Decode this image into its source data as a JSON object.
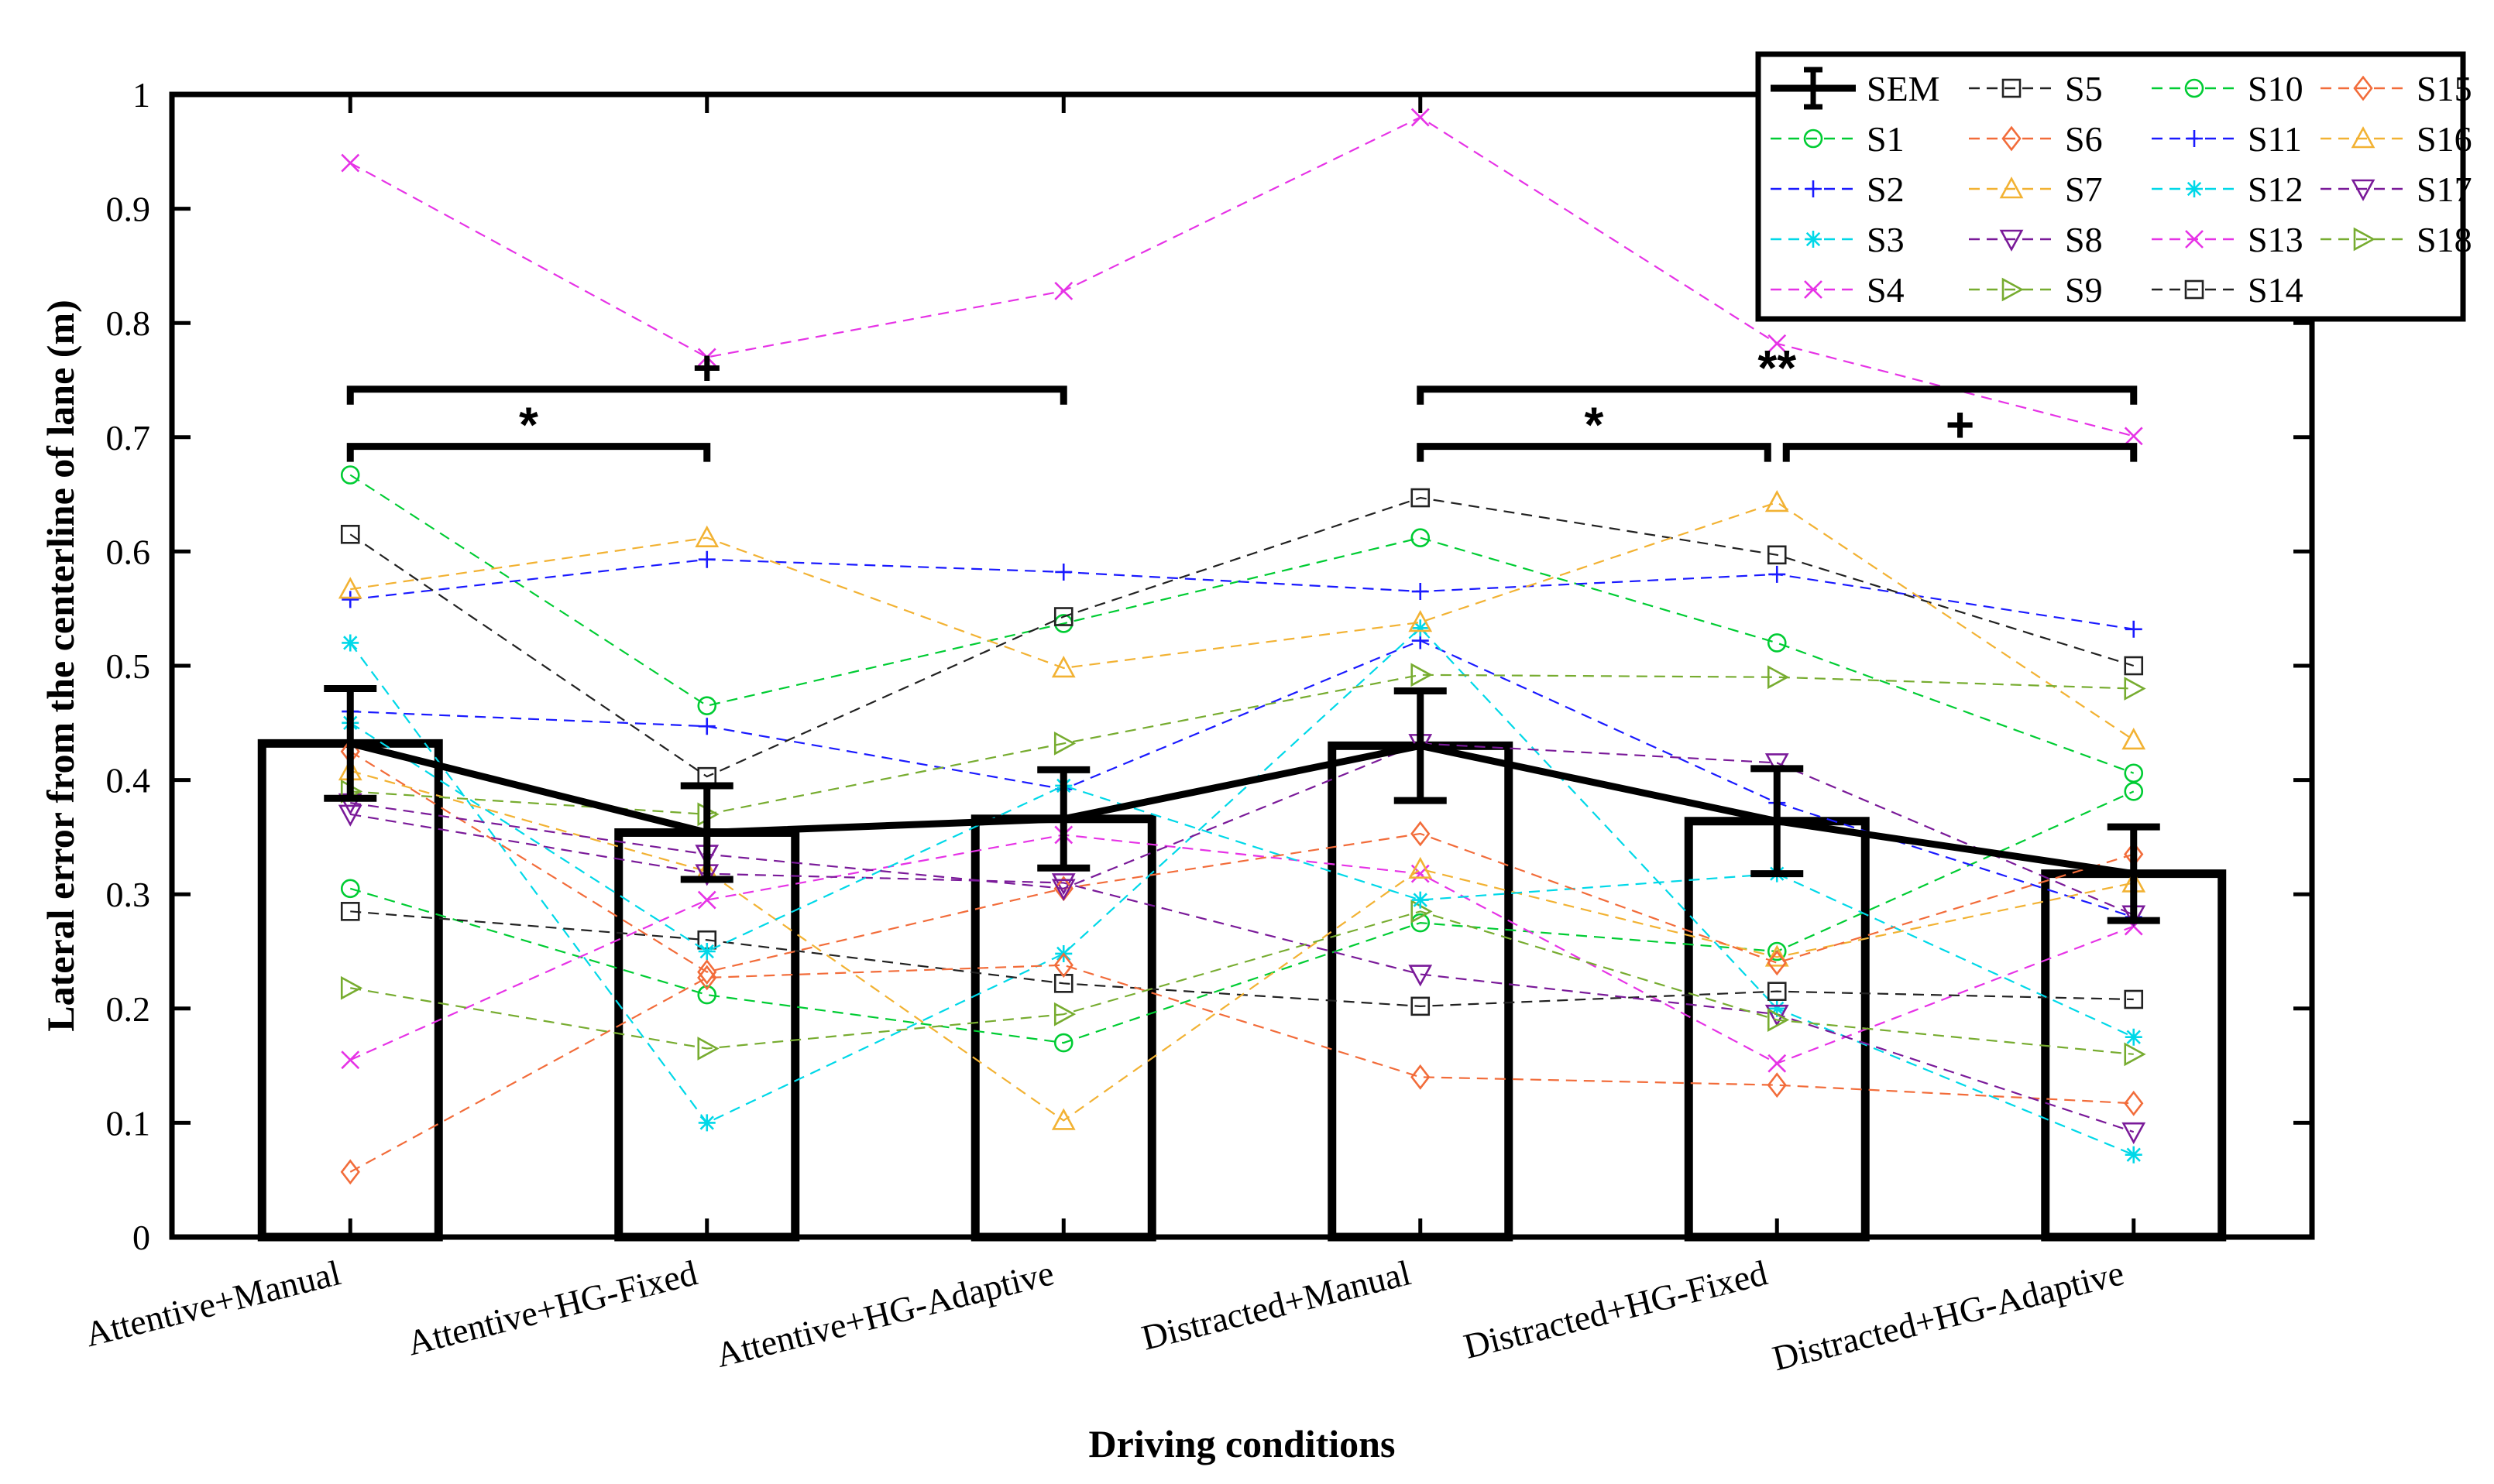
{
  "chart_data": {
    "type": "bar",
    "title": "",
    "xlabel": "Driving conditions",
    "ylabel": "Lateral error from the centerline of lane (m)",
    "ylim": [
      0,
      1
    ],
    "yticks": [
      0,
      0.1,
      0.2,
      0.3,
      0.4,
      0.5,
      0.6,
      0.7,
      0.8,
      0.9,
      1
    ],
    "ytick_labels": [
      "0",
      "0.1",
      "0.2",
      "0.3",
      "0.4",
      "0.5",
      "0.6",
      "0.7",
      "0.8",
      "0.9",
      "1"
    ],
    "categories": [
      "Attentive+Manual",
      "Attentive+HG-Fixed",
      "Attentive+HG-Adaptive",
      "Distracted+Manual",
      "Distracted+HG-Fixed",
      "Distracted+HG-Adaptive"
    ],
    "mean_values": [
      0.432,
      0.354,
      0.366,
      0.43,
      0.364,
      0.318
    ],
    "sem": [
      0.048,
      0.041,
      0.043,
      0.048,
      0.046,
      0.041
    ],
    "sem_label": "SEM",
    "legend_position": "top-right",
    "series": [
      {
        "name": "S1",
        "color": "#00cc33",
        "marker": "circle",
        "values": [
          0.305,
          0.212,
          0.17,
          0.275,
          0.25,
          0.39
        ]
      },
      {
        "name": "S2",
        "color": "#1a1aff",
        "marker": "plus",
        "values": [
          0.46,
          0.447,
          0.392,
          0.522,
          0.38,
          0.28
        ]
      },
      {
        "name": "S3",
        "color": "#00d8e8",
        "marker": "star",
        "values": [
          0.52,
          0.1,
          0.248,
          0.533,
          0.2,
          0.072
        ]
      },
      {
        "name": "S4",
        "color": "#e633e6",
        "marker": "x",
        "values": [
          0.155,
          0.295,
          0.352,
          0.318,
          0.152,
          0.272
        ]
      },
      {
        "name": "S5",
        "color": "#222222",
        "marker": "square",
        "values": [
          0.285,
          0.26,
          0.222,
          0.202,
          0.215,
          0.208
        ]
      },
      {
        "name": "S6",
        "color": "#f26c3a",
        "marker": "diamond",
        "values": [
          0.057,
          0.227,
          0.238,
          0.14,
          0.133,
          0.117
        ]
      },
      {
        "name": "S7",
        "color": "#f2b233",
        "marker": "triangle-up",
        "values": [
          0.408,
          0.32,
          0.102,
          0.322,
          0.245,
          0.31
        ]
      },
      {
        "name": "S8",
        "color": "#7a1a99",
        "marker": "triangle-down",
        "values": [
          0.37,
          0.318,
          0.31,
          0.23,
          0.195,
          0.092
        ]
      },
      {
        "name": "S9",
        "color": "#77ac30",
        "marker": "triangle-right",
        "values": [
          0.218,
          0.165,
          0.195,
          0.285,
          0.19,
          0.16
        ]
      },
      {
        "name": "S10",
        "color": "#00cc33",
        "marker": "circle",
        "values": [
          0.667,
          0.465,
          0.537,
          0.612,
          0.52,
          0.406
        ]
      },
      {
        "name": "S11",
        "color": "#1a1aff",
        "marker": "plus",
        "values": [
          0.558,
          0.593,
          0.582,
          0.565,
          0.58,
          0.532
        ]
      },
      {
        "name": "S12",
        "color": "#00d8e8",
        "marker": "star",
        "values": [
          0.45,
          0.25,
          0.395,
          0.295,
          0.318,
          0.175
        ]
      },
      {
        "name": "S13",
        "color": "#e633e6",
        "marker": "x",
        "values": [
          0.94,
          0.77,
          0.828,
          0.98,
          0.782,
          0.701
        ]
      },
      {
        "name": "S14",
        "color": "#222222",
        "marker": "square",
        "values": [
          0.615,
          0.403,
          0.543,
          0.647,
          0.597,
          0.5
        ]
      },
      {
        "name": "S15",
        "color": "#f26c3a",
        "marker": "diamond",
        "values": [
          0.425,
          0.232,
          0.305,
          0.353,
          0.24,
          0.335
        ]
      },
      {
        "name": "S16",
        "color": "#f2b233",
        "marker": "triangle-up",
        "values": [
          0.567,
          0.612,
          0.498,
          0.538,
          0.643,
          0.435
        ]
      },
      {
        "name": "S17",
        "color": "#7a1a99",
        "marker": "triangle-down",
        "values": [
          0.38,
          0.335,
          0.305,
          0.432,
          0.415,
          0.282
        ]
      },
      {
        "name": "S18",
        "color": "#77ac30",
        "marker": "triangle-right",
        "values": [
          0.39,
          0.37,
          0.432,
          0.492,
          0.49,
          0.48
        ]
      }
    ],
    "significance": [
      {
        "from": 0,
        "to": 2,
        "label": "+"
      },
      {
        "from": 0,
        "to": 1,
        "label": "*"
      },
      {
        "from": 3,
        "to": 5,
        "label": "**"
      },
      {
        "from": 3,
        "to": 4,
        "label": "*"
      },
      {
        "from": 4,
        "to": 5,
        "label": "+"
      }
    ]
  }
}
